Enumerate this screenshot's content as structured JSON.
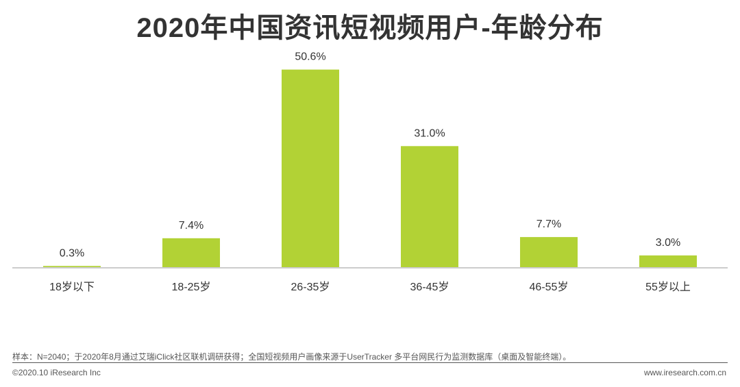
{
  "title": "2020年中国资讯短视频用户-年龄分布",
  "chart_data": {
    "type": "bar",
    "categories": [
      "18岁以下",
      "18-25岁",
      "26-35岁",
      "36-45岁",
      "46-55岁",
      "55岁以上"
    ],
    "values": [
      0.3,
      7.4,
      50.6,
      31.0,
      7.7,
      3.0
    ],
    "value_labels": [
      "0.3%",
      "7.4%",
      "50.6%",
      "31.0%",
      "7.7%",
      "3.0%"
    ],
    "unit": "%",
    "ylim": [
      0,
      60
    ],
    "grid": false,
    "bar_color": "#b2d235"
  },
  "footer": {
    "note": "样本：N=2040；于2020年8月通过艾瑞iClick社区联机调研获得；全国短视频用户画像来源于UserTracker 多平台网民行为监测数据库（桌面及智能终端）。",
    "copyright": "©2020.10 iResearch Inc",
    "website": "www.iresearch.com.cn"
  }
}
